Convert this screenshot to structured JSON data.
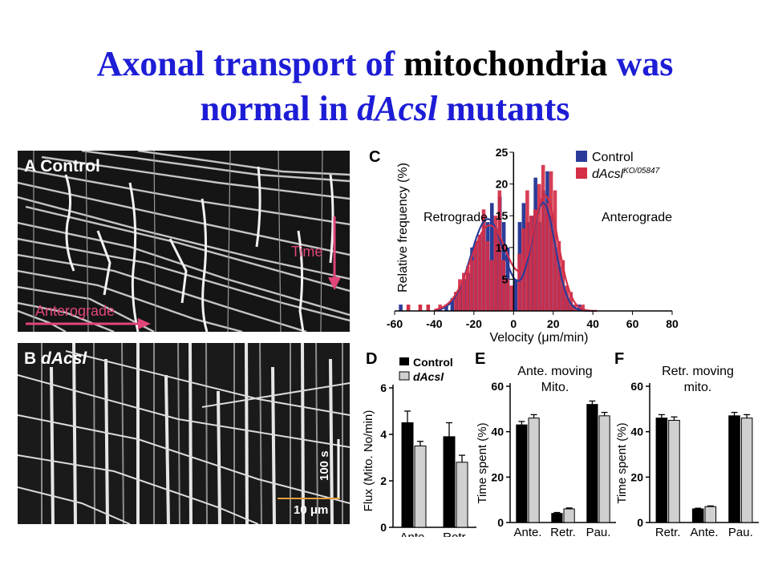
{
  "title": {
    "part1": "Axonal transport of ",
    "part2": "mitochondria",
    "part3": " was",
    "part4": "normal in ",
    "part5": "dAcsl",
    "part6": " mutants"
  },
  "panel_a": {
    "letter": "A",
    "label": "Control",
    "time_label": "Time",
    "antero_label": "Anterograde"
  },
  "panel_b": {
    "letter": "B",
    "label": "dAcsl",
    "scale_time": "100 s",
    "scale_dist": "10 μm"
  },
  "colors": {
    "control": "#2b3c98",
    "mutant": "#d32f47",
    "title": "#1d1dd6",
    "annotation": "#e0457a"
  },
  "chart_data": [
    {
      "panel": "C",
      "type": "bar",
      "xlabel": "Velocity (μm/min)",
      "ylabel": "Relative frequency (%)",
      "xlim": [
        -60,
        80
      ],
      "ylim": [
        0,
        25
      ],
      "xticks": [
        -60,
        -40,
        -20,
        0,
        20,
        40,
        60,
        80
      ],
      "yticks": [
        5,
        10,
        15,
        20,
        25
      ],
      "annotations": [
        "Retrograde",
        "Anterograde"
      ],
      "legend": [
        "Control",
        "dAcslKO/05847"
      ],
      "legend_main": "dAcsl",
      "legend_sup": "KO/05847",
      "x": [
        -56,
        -38,
        -33,
        -30,
        -28,
        -26,
        -24,
        -22,
        -20,
        -18,
        -16,
        -14,
        -12,
        -10,
        -8,
        -6,
        -4,
        -2,
        2,
        4,
        6,
        8,
        10,
        12,
        14,
        16,
        18,
        20,
        22,
        24,
        26,
        28,
        30,
        34
      ],
      "series": [
        {
          "name": "Control",
          "values": [
            1,
            0,
            1,
            2,
            3,
            4,
            5,
            6,
            10,
            11,
            12,
            15,
            14,
            17,
            13,
            18,
            14,
            10,
            5,
            14,
            17,
            14,
            15,
            21,
            14,
            19,
            22,
            15,
            10,
            7,
            4,
            2,
            1,
            1
          ]
        },
        {
          "name": "dAcslKO/05847",
          "values": [
            0,
            1,
            0,
            3,
            5,
            6,
            7,
            8,
            11,
            12,
            16,
            11,
            8,
            15,
            19,
            8,
            5,
            4,
            9,
            13,
            19,
            15,
            16,
            20,
            23,
            17,
            22,
            19,
            11,
            8,
            4,
            3,
            1,
            1
          ]
        }
      ],
      "mutant_extra": {
        "x": [
          -54,
          -48,
          -44,
          -50
        ],
        "values": [
          1,
          1,
          1,
          0
        ]
      }
    },
    {
      "panel": "D",
      "type": "bar",
      "ylabel": "Flux (Mito. No/min)",
      "ylim": [
        0,
        6
      ],
      "yticks": [
        0,
        2,
        4,
        6
      ],
      "categories": [
        "Ante.",
        "Retr."
      ],
      "legend": [
        "Control",
        "dAcsl"
      ],
      "series": [
        {
          "name": "Control",
          "values": [
            4.5,
            3.9
          ],
          "errors": [
            0.5,
            0.6
          ]
        },
        {
          "name": "dAcsl",
          "values": [
            3.5,
            2.8
          ],
          "errors": [
            0.2,
            0.3
          ]
        }
      ]
    },
    {
      "panel": "E",
      "type": "bar",
      "title": "Ante. moving",
      "title2": "Mito.",
      "ylabel": "Time spent (%)",
      "ylim": [
        0,
        60
      ],
      "yticks": [
        0,
        20,
        40,
        60
      ],
      "categories": [
        "Ante.",
        "Retr.",
        "Pau."
      ],
      "series": [
        {
          "name": "Control",
          "values": [
            43,
            4,
            52
          ],
          "errors": [
            1.5,
            0.4,
            1.5
          ]
        },
        {
          "name": "dAcsl",
          "values": [
            46,
            6,
            47
          ],
          "errors": [
            1.5,
            0.4,
            1.5
          ]
        }
      ]
    },
    {
      "panel": "F",
      "type": "bar",
      "title": "Retr. moving",
      "title2": "mito.",
      "ylabel": "Time spent (%)",
      "ylim": [
        0,
        60
      ],
      "yticks": [
        0,
        20,
        40,
        60
      ],
      "categories": [
        "Retr.",
        "Ante.",
        "Pau."
      ],
      "series": [
        {
          "name": "Control",
          "values": [
            46,
            6,
            47
          ],
          "errors": [
            1.5,
            0.3,
            1.5
          ]
        },
        {
          "name": "dAcsl",
          "values": [
            45,
            7,
            46
          ],
          "errors": [
            1.5,
            0.3,
            1.5
          ]
        }
      ]
    }
  ]
}
